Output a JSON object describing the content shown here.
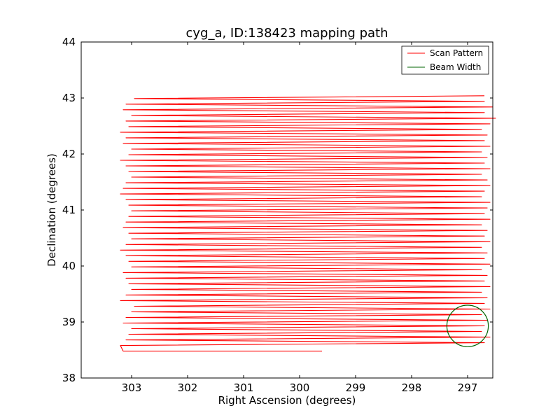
{
  "chart_data": {
    "type": "line",
    "title": "cyg_a, ID:138423 mapping path",
    "xlabel": "Right Ascension (degrees)",
    "ylabel": "Declination (degrees)",
    "xlim": [
      303.9,
      296.55
    ],
    "ylim": [
      38,
      44
    ],
    "xticks": [
      303,
      302,
      301,
      300,
      299,
      298,
      297
    ],
    "yticks": [
      38,
      39,
      40,
      41,
      42,
      43,
      44
    ],
    "grid": false,
    "legend_position": "top-right",
    "series": [
      {
        "name": "Scan Pattern",
        "color": "#ff0000",
        "scan_rows": {
          "dec_start": 38.48,
          "dec_end": 42.99,
          "row_count": 46,
          "ra_left_values": [
            303.15,
            303.2,
            303.1,
            303.05,
            303.0,
            303.15,
            303.1,
            303.0,
            302.95,
            303.2,
            303.1,
            303.0,
            303.05,
            303.1,
            303.15,
            303.0,
            303.05,
            303.1,
            303.2,
            303.1,
            303.0,
            303.05,
            303.15,
            303.1,
            303.05,
            303.0,
            303.05,
            303.1,
            303.2,
            303.15,
            303.1,
            303.0,
            303.05,
            303.1,
            303.2,
            303.05,
            303.0,
            303.15,
            303.1,
            303.2,
            303.05,
            303.1,
            303.0,
            303.15,
            303.1,
            302.95
          ],
          "ra_right_values": [
            299.6,
            296.7,
            296.6,
            296.75,
            296.7,
            296.65,
            296.75,
            296.6,
            296.7,
            296.65,
            296.75,
            296.6,
            296.7,
            296.65,
            296.75,
            296.6,
            296.7,
            296.65,
            296.75,
            296.6,
            296.7,
            296.65,
            296.75,
            296.6,
            296.7,
            296.65,
            296.6,
            296.75,
            296.7,
            296.6,
            296.65,
            296.75,
            296.6,
            296.7,
            296.65,
            296.75,
            296.6,
            296.7,
            296.65,
            296.75,
            296.6,
            296.5,
            296.7,
            296.55,
            296.7,
            296.7
          ]
        }
      },
      {
        "name": "Beam Width",
        "color": "#006400",
        "circle": {
          "ra_center": 297.0,
          "dec_center": 38.93,
          "radius_deg": 0.37
        }
      }
    ]
  }
}
